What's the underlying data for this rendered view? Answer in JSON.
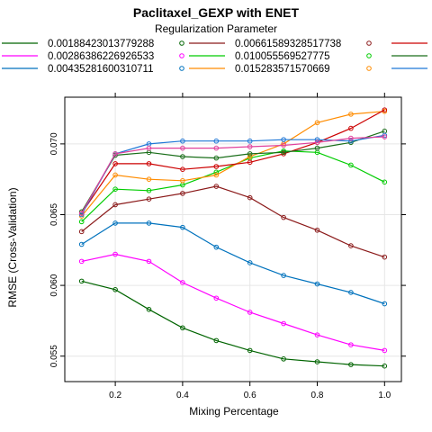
{
  "chart_data": {
    "type": "line",
    "title": "Paclitaxel_GEXP with ENET",
    "legend_title": "Regularization Parameter",
    "legend_position": "top",
    "xlabel": "Mixing Percentage",
    "ylabel": "RMSE (Cross-Validation)",
    "xlim": [
      0.05,
      1.05
    ],
    "ylim": [
      0.0532,
      0.0733
    ],
    "x_ticks": [
      0.2,
      0.4,
      0.6,
      0.8,
      1.0
    ],
    "x_tick_labels": [
      "0.2",
      "0.4",
      "0.6",
      "0.8",
      "1.0"
    ],
    "y_ticks": [
      0.055,
      0.06,
      0.065,
      0.07
    ],
    "y_tick_labels": [
      "0.055",
      "0.060",
      "0.065",
      "0.070"
    ],
    "grid": true,
    "x": [
      0.1,
      0.2,
      0.3,
      0.4,
      0.5,
      0.6,
      0.7,
      0.8,
      0.9,
      1.0
    ],
    "series": [
      {
        "name": "0.00188423013779288",
        "color": "#006400",
        "values": [
          0.0603,
          0.0597,
          0.0583,
          0.057,
          0.0561,
          0.0554,
          0.0548,
          0.0546,
          0.0544,
          0.0543
        ]
      },
      {
        "name": "0.00286386226926533",
        "color": "#ff00ff",
        "values": [
          0.0617,
          0.0622,
          0.0617,
          0.0602,
          0.0591,
          0.0581,
          0.0573,
          0.0565,
          0.0558,
          0.0554
        ]
      },
      {
        "name": "0.00435281600310711",
        "color": "#0072bd",
        "values": [
          0.0629,
          0.0644,
          0.0644,
          0.0641,
          0.0627,
          0.0616,
          0.0607,
          0.0601,
          0.0595,
          0.0587
        ]
      },
      {
        "name": "0.00661589328517738",
        "color": "#8b1a1a",
        "values": [
          0.0638,
          0.0657,
          0.0661,
          0.0665,
          0.067,
          0.0662,
          0.0648,
          0.0639,
          0.0628,
          0.062
        ]
      },
      {
        "name": "0.010055569527775",
        "color": "#00cc00",
        "values": [
          0.0645,
          0.0668,
          0.0667,
          0.0671,
          0.068,
          0.069,
          0.0695,
          0.0694,
          0.0685,
          0.0673
        ]
      },
      {
        "name": "0.015283571570669",
        "color": "#ff8c00",
        "values": [
          0.0649,
          0.0678,
          0.0675,
          0.0674,
          0.0678,
          0.0691,
          0.07,
          0.0715,
          0.0721,
          0.0723
        ]
      },
      {
        "name": "",
        "color": "#cc0000",
        "values": [
          0.0651,
          0.0686,
          0.0686,
          0.0682,
          0.0684,
          0.0687,
          0.0693,
          0.0701,
          0.0711,
          0.0724
        ]
      },
      {
        "name": "",
        "color": "#1a6e1a",
        "values": [
          0.0652,
          0.0692,
          0.0694,
          0.0691,
          0.069,
          0.0693,
          0.0694,
          0.0697,
          0.0701,
          0.0709
        ]
      },
      {
        "name": "",
        "color": "#1f77d6",
        "values": [
          0.065,
          0.0693,
          0.07,
          0.0702,
          0.0702,
          0.0702,
          0.0703,
          0.0703,
          0.0702,
          0.0706
        ]
      },
      {
        "name": "",
        "color": "#e0409b",
        "values": [
          0.0651,
          0.0693,
          0.0697,
          0.0697,
          0.0697,
          0.0698,
          0.0699,
          0.0701,
          0.0704,
          0.0705
        ]
      }
    ]
  }
}
